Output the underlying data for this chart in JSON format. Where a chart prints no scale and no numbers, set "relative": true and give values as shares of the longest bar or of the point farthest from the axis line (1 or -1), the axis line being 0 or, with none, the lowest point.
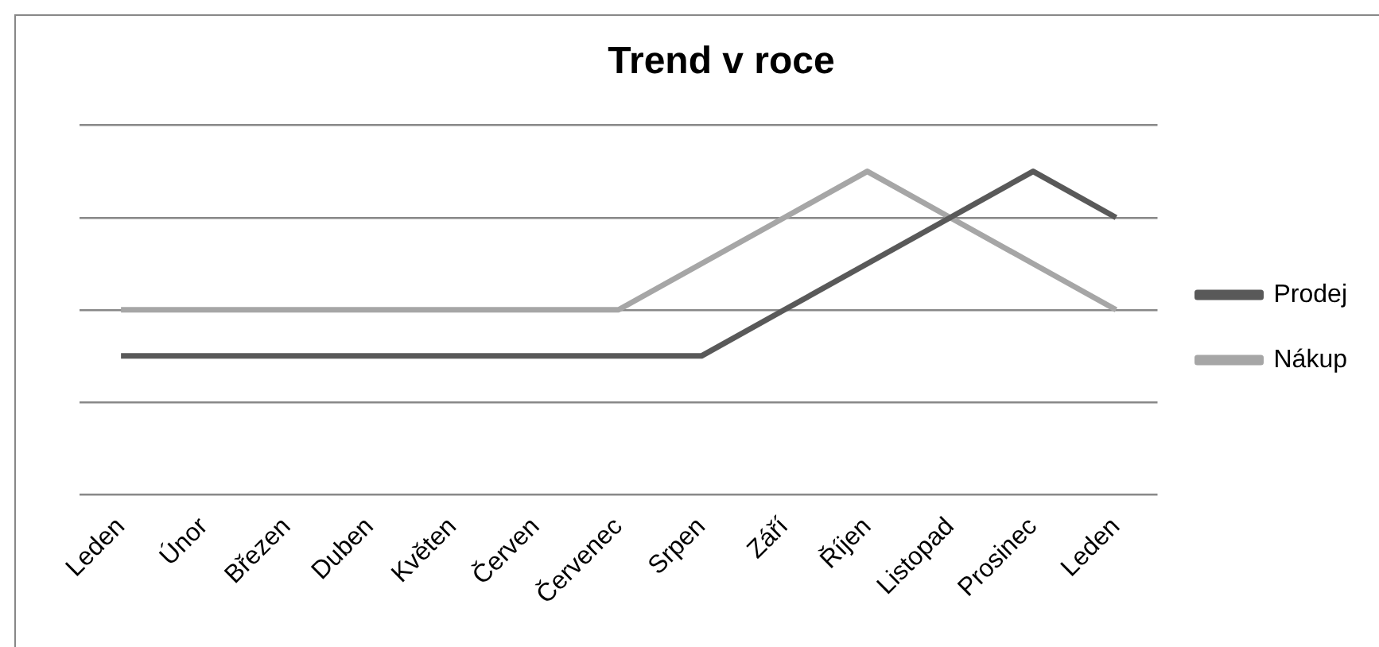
{
  "chart_data": {
    "type": "line",
    "title": "Trend v roce",
    "relative": true,
    "categories": [
      "Leden",
      "Únor",
      "Březen",
      "Duben",
      "Květen",
      "Červen",
      "Červenec",
      "Srpen",
      "Září",
      "Říjen",
      "Listopad",
      "Prosinec",
      "Leden"
    ],
    "series": [
      {
        "name": "Prodej",
        "color": "#595959",
        "values": [
          0.4286,
          0.4286,
          0.4286,
          0.4286,
          0.4286,
          0.4286,
          0.4286,
          0.4286,
          0.5714,
          0.7143,
          0.8571,
          1,
          0.8571
        ]
      },
      {
        "name": "Nákup",
        "color": "#a6a6a6",
        "values": [
          0.5714,
          0.5714,
          0.5714,
          0.5714,
          0.5714,
          0.5714,
          0.5714,
          0.7143,
          0.8571,
          1,
          0.8571,
          0.7143,
          0.5714
        ]
      }
    ],
    "grid": "y",
    "legend": "right",
    "marker": "none",
    "line_style": "solid"
  }
}
